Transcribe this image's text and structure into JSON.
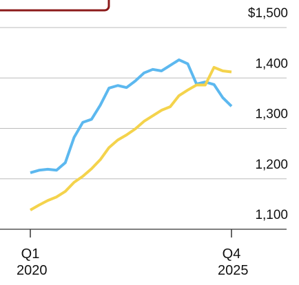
{
  "chart_data": {
    "type": "line",
    "categories": [
      "Q1 2020",
      null,
      null,
      null,
      null,
      null,
      null,
      null,
      null,
      null,
      null,
      null,
      null,
      null,
      null,
      null,
      null,
      null,
      null,
      null,
      null,
      null,
      null,
      "Q4 2025"
    ],
    "series": [
      {
        "color": "#5cb8ef",
        "values": [
          1212,
          1217,
          1219,
          1217,
          1232,
          1282,
          1312,
          1318,
          1346,
          1380,
          1385,
          1381,
          1394,
          1410,
          1417,
          1414,
          1425,
          1436,
          1428,
          1388,
          1392,
          1387,
          1361,
          1344
        ]
      },
      {
        "color": "#f4d34c",
        "values": [
          1138,
          1148,
          1157,
          1164,
          1175,
          1193,
          1205,
          1220,
          1238,
          1262,
          1277,
          1287,
          1299,
          1314,
          1325,
          1336,
          1343,
          1365,
          1376,
          1386,
          1386,
          1421,
          1414,
          1412
        ]
      }
    ],
    "ylim": [
      1100,
      1500
    ],
    "yticks": [
      {
        "value": 1100,
        "label": "1,100"
      },
      {
        "value": 1200,
        "label": "1,200"
      },
      {
        "value": 1300,
        "label": "1,300"
      },
      {
        "value": 1400,
        "label": "1,400"
      },
      {
        "value": 1500,
        "label": "$1,500"
      }
    ],
    "grid": true
  }
}
